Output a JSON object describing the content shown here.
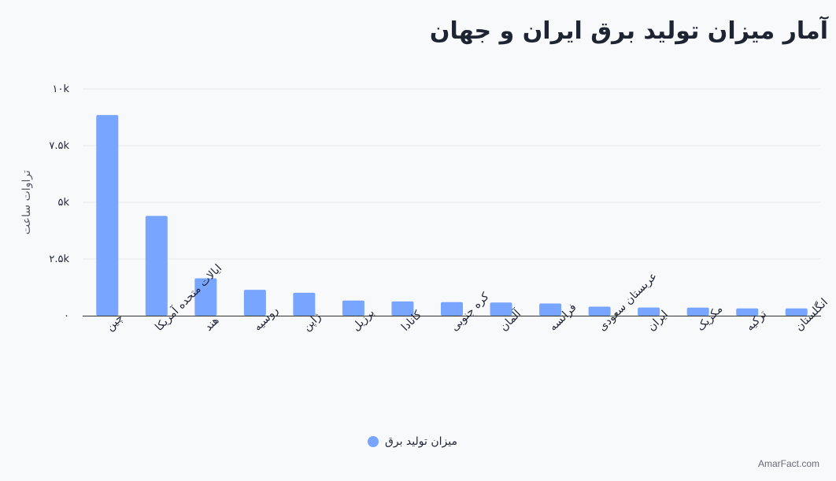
{
  "title": "آمار میزان تولید برق ایران و جهان",
  "credit": "AmarFact.com",
  "colors": {
    "bar": "#77a5ff",
    "grid": "#e3e6ec",
    "axis": "#333333"
  },
  "chart_data": {
    "type": "bar",
    "ylabel": "تراوات ساعت",
    "ylim": [
      0,
      10000
    ],
    "yticks": [
      {
        "value": 0,
        "label": "۰"
      },
      {
        "value": 2500,
        "label": "۲.۵k"
      },
      {
        "value": 5000,
        "label": "۵k"
      },
      {
        "value": 7500,
        "label": "۷.۵k"
      },
      {
        "value": 10000,
        "label": "۱۰k"
      }
    ],
    "categories": [
      [
        "چین"
      ],
      [
        "ایالات متحده آمریکا"
      ],
      [
        "هند"
      ],
      [
        "روسیه"
      ],
      [
        "ژاپن"
      ],
      [
        "برزیل"
      ],
      [
        "کانادا"
      ],
      [
        "کره جنوبی"
      ],
      [
        "آلمان"
      ],
      [
        "فرانسه"
      ],
      [
        "عربستان سعودی"
      ],
      [
        "ایران"
      ],
      [
        "مکزیک"
      ],
      [
        "ترکیه"
      ],
      [
        "انگلستان"
      ]
    ],
    "series": [
      {
        "name": "میزان تولید برق",
        "values": [
          8850,
          4400,
          1650,
          1140,
          1010,
          670,
          630,
          600,
          580,
          540,
          400,
          360,
          355,
          320,
          320
        ]
      }
    ],
    "grid": true,
    "legend": "bottom-center"
  }
}
